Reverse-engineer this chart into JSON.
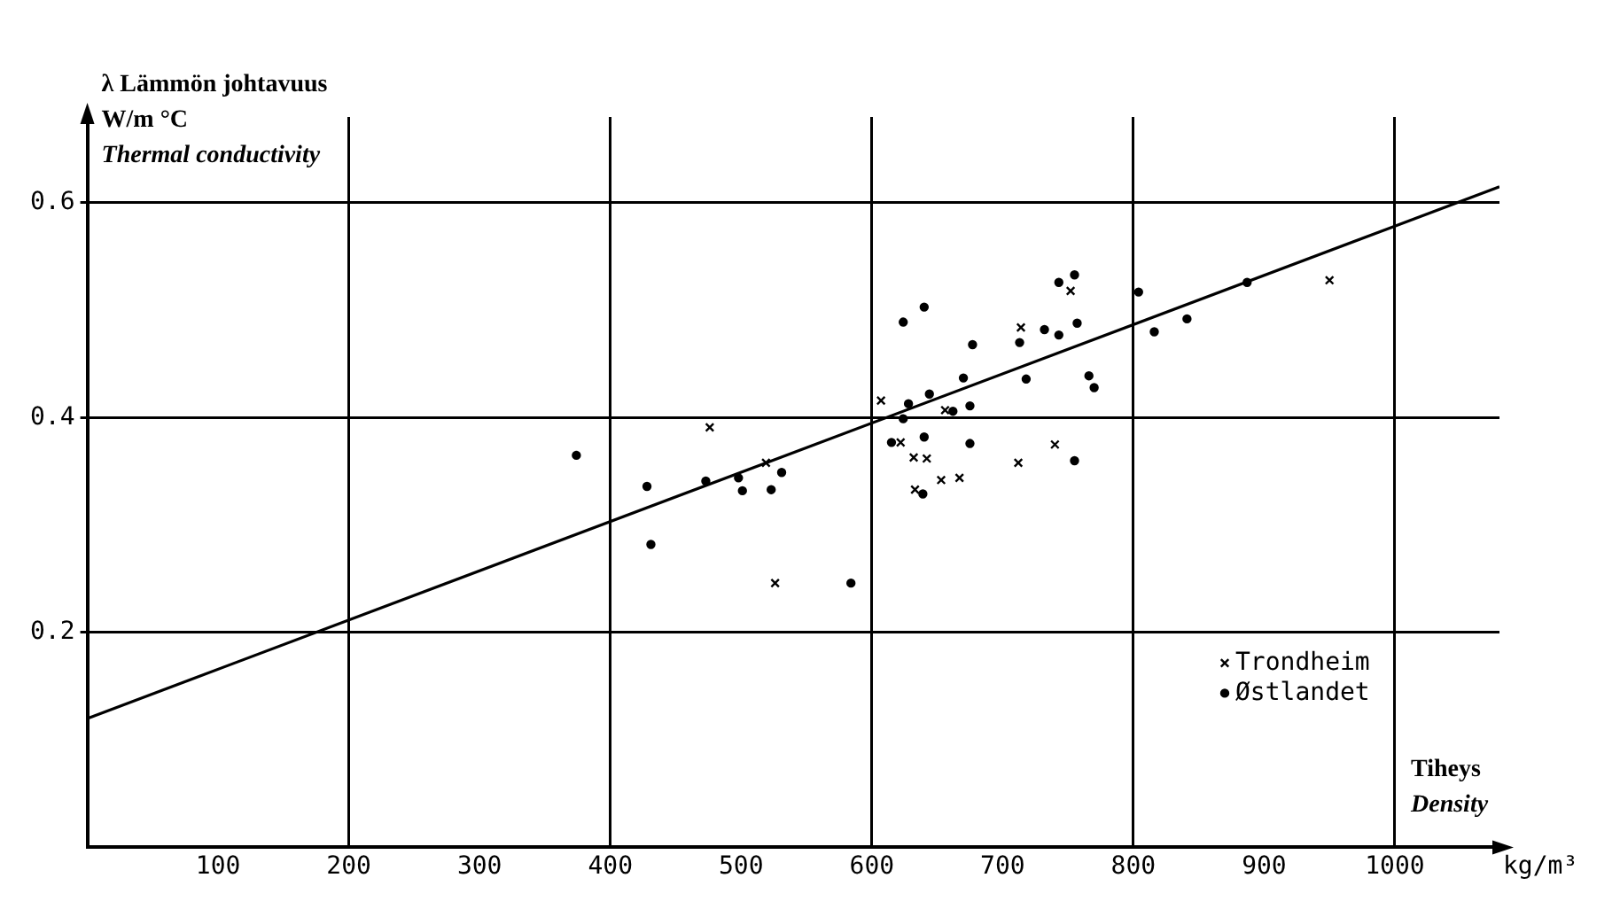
{
  "chart_data": {
    "type": "scatter",
    "xlabel": "Tiheys\nDensity",
    "ylabel": "λ Lämmön johtavuus\nW/m °C\nThermal conductivity",
    "annotations": [
      "kg/m³"
    ],
    "xlim": [
      0,
      1080
    ],
    "ylim": [
      0,
      0.68
    ],
    "xticks": [
      100,
      200,
      300,
      400,
      500,
      600,
      700,
      800,
      900,
      1000
    ],
    "yticks": [
      0.2,
      0.4,
      0.6
    ],
    "grid": true,
    "legend": "bottom right",
    "series": [
      {
        "name": "Trondheim",
        "color": "#000000",
        "marker": "cross",
        "x": [
          476,
          519,
          526,
          622,
          632,
          653,
          633,
          656,
          752,
          950,
          714,
          740,
          712,
          607,
          642,
          667
        ],
        "values": [
          0.391,
          0.358,
          0.246,
          0.377,
          0.363,
          0.342,
          0.333,
          0.407,
          0.518,
          0.528,
          0.484,
          0.375,
          0.358,
          0.416,
          0.362,
          0.344
        ]
      },
      {
        "name": "Østlandet",
        "color": "#000000",
        "marker": "circle",
        "x": [
          374,
          428,
          431,
          473,
          498,
          501,
          523,
          531,
          584,
          624,
          615,
          640,
          639,
          628,
          755,
          743,
          804,
          887,
          732,
          713,
          743,
          757,
          816,
          841,
          718,
          766,
          770,
          755,
          640,
          624,
          677,
          670,
          675,
          662,
          644,
          675
        ],
        "values": [
          0.365,
          0.336,
          0.282,
          0.341,
          0.344,
          0.332,
          0.333,
          0.349,
          0.246,
          0.399,
          0.377,
          0.382,
          0.329,
          0.413,
          0.533,
          0.526,
          0.517,
          0.526,
          0.482,
          0.47,
          0.477,
          0.488,
          0.48,
          0.492,
          0.436,
          0.439,
          0.428,
          0.36,
          0.503,
          0.489,
          0.468,
          0.437,
          0.411,
          0.406,
          0.422,
          0.376
        ]
      },
      {
        "type": "line",
        "color": "#000000",
        "marker": "none",
        "x": [
          0,
          1080
        ],
        "values": [
          0.12,
          0.615
        ]
      }
    ]
  }
}
